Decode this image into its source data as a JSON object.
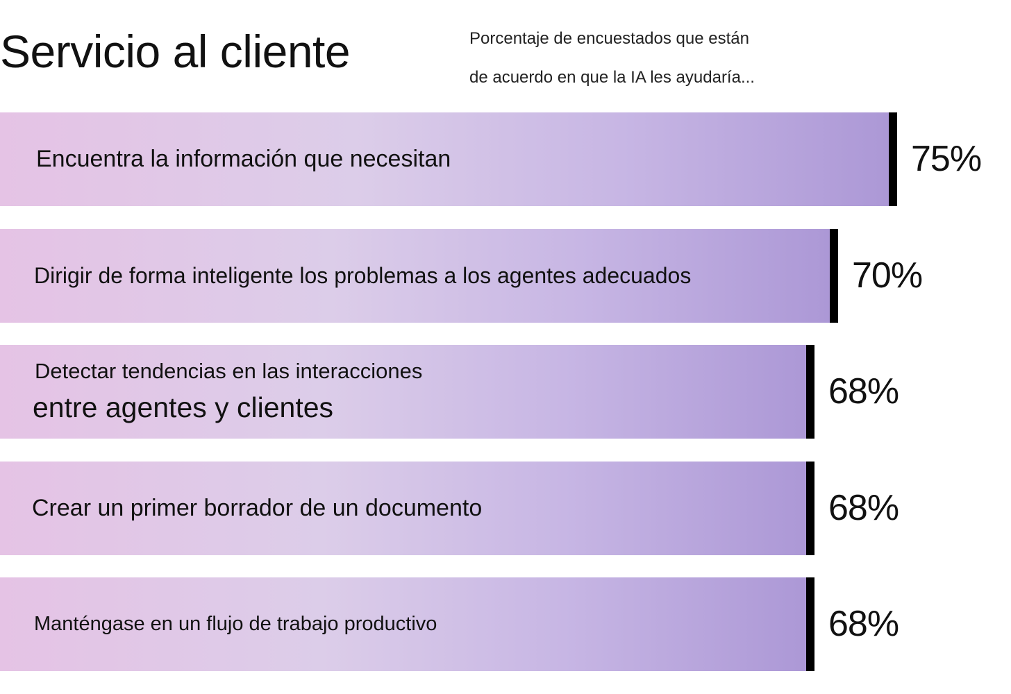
{
  "header": {
    "title": "Servicio al cliente",
    "subtitle_line1": "Porcentaje de encuestados que están",
    "subtitle_line2": "de acuerdo en que la IA les ayudaría..."
  },
  "chart_data": {
    "type": "bar",
    "orientation": "horizontal",
    "title": "Servicio al cliente",
    "subtitle": "Porcentaje de encuestados que están de acuerdo en que la IA les ayudaría...",
    "unit": "%",
    "categories": [
      "Encuentra la información que necesitan",
      "Dirigir de forma inteligente los problemas a los agentes adecuados",
      "Detectar tendencias en las interacciones entre agentes y clientes",
      "Crear un primer borrador de un documento",
      "Manténgase en un flujo de trabajo productivo"
    ],
    "values": [
      75,
      70,
      68,
      68,
      68
    ],
    "value_labels": [
      "75%",
      "70%",
      "68%",
      "68%",
      "68%"
    ],
    "colors": {
      "gradient_start": "#e5c3e5",
      "gradient_mid": "#dccde9",
      "gradient_end": "#ac98d6",
      "bar_end_marker": "#000000"
    },
    "grid": false,
    "legend": "none"
  }
}
